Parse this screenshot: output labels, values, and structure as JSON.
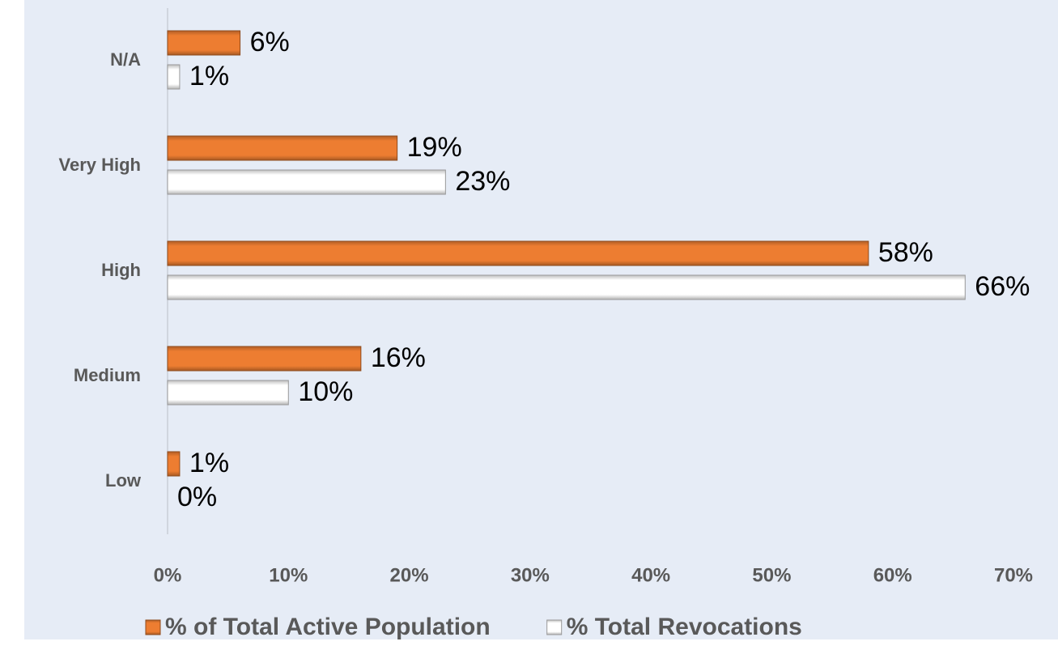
{
  "chart_data": {
    "type": "bar",
    "orientation": "horizontal",
    "categories": [
      "N/A",
      "Very High",
      "High",
      "Medium",
      "Low"
    ],
    "series": [
      {
        "name": "% of Total Active Population",
        "color": "#ed7d31",
        "values": [
          6,
          19,
          58,
          16,
          1
        ],
        "value_labels": [
          "6%",
          "19%",
          "58%",
          "16%",
          "1%"
        ]
      },
      {
        "name": "% Total Revocations",
        "color": "#ffffff",
        "values": [
          1,
          23,
          66,
          10,
          0
        ],
        "value_labels": [
          "1%",
          "23%",
          "66%",
          "10%",
          "0%"
        ]
      }
    ],
    "xlim": [
      0,
      70
    ],
    "xticks": [
      {
        "value": 0,
        "label": "0%"
      },
      {
        "value": 10,
        "label": "10%"
      },
      {
        "value": 20,
        "label": "20%"
      },
      {
        "value": 30,
        "label": "30%"
      },
      {
        "value": 40,
        "label": "40%"
      },
      {
        "value": 50,
        "label": "50%"
      },
      {
        "value": 60,
        "label": "60%"
      },
      {
        "value": 70,
        "label": "70%"
      }
    ],
    "legend": "bottom"
  }
}
